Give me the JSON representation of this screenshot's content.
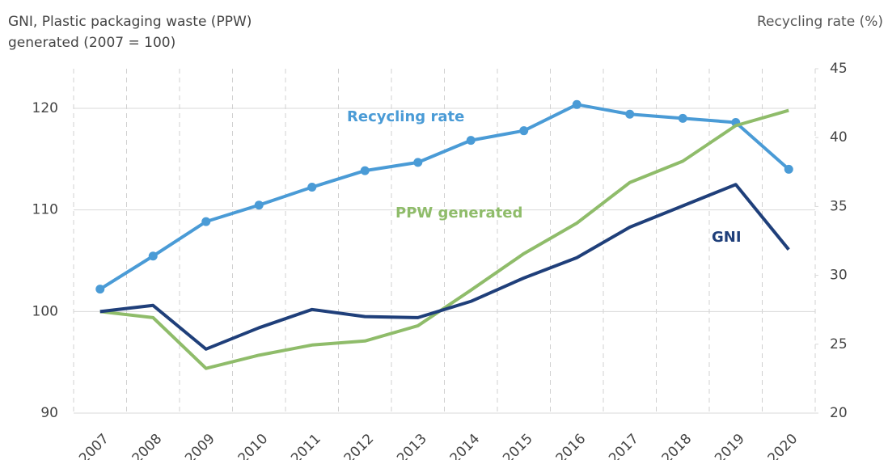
{
  "chart_data": {
    "type": "line",
    "y_label": [
      "GNI, Plastic packaging waste (PPW)",
      "generated (2007 = 100)"
    ],
    "y2_label": "Recycling rate (%)",
    "categories": [
      "2007",
      "2008",
      "2009",
      "2010",
      "2011",
      "2012",
      "2013",
      "2014",
      "2015",
      "2016",
      "2017",
      "2018",
      "2019",
      "2020"
    ],
    "series": [
      {
        "name": "Recycling rate",
        "color": "#4a9bd6",
        "axis": "y2",
        "markers": true,
        "values": [
          29.0,
          31.4,
          33.9,
          35.1,
          36.4,
          37.6,
          38.2,
          39.8,
          40.5,
          42.4,
          41.7,
          41.4,
          41.1,
          37.7
        ]
      },
      {
        "name": "PPW generated",
        "color": "#8fbc6a",
        "axis": "y",
        "markers": false,
        "values": [
          100,
          99.4,
          94.4,
          95.7,
          96.7,
          97.1,
          98.6,
          102.1,
          105.7,
          108.7,
          112.7,
          114.8,
          118.3,
          119.8
        ]
      },
      {
        "name": "GNI",
        "color": "#1f3f7a",
        "axis": "y",
        "markers": false,
        "values": [
          100,
          100.6,
          96.3,
          98.4,
          100.2,
          99.5,
          99.4,
          101.0,
          103.3,
          105.3,
          108.3,
          110.4,
          112.5,
          106.1
        ]
      }
    ],
    "ylim": [
      90,
      123.9
    ],
    "yticks": [
      90,
      100,
      110,
      120
    ],
    "y2lim": [
      20,
      45
    ],
    "y2ticks": [
      20,
      25,
      30,
      35,
      40,
      45
    ],
    "grid": true
  }
}
